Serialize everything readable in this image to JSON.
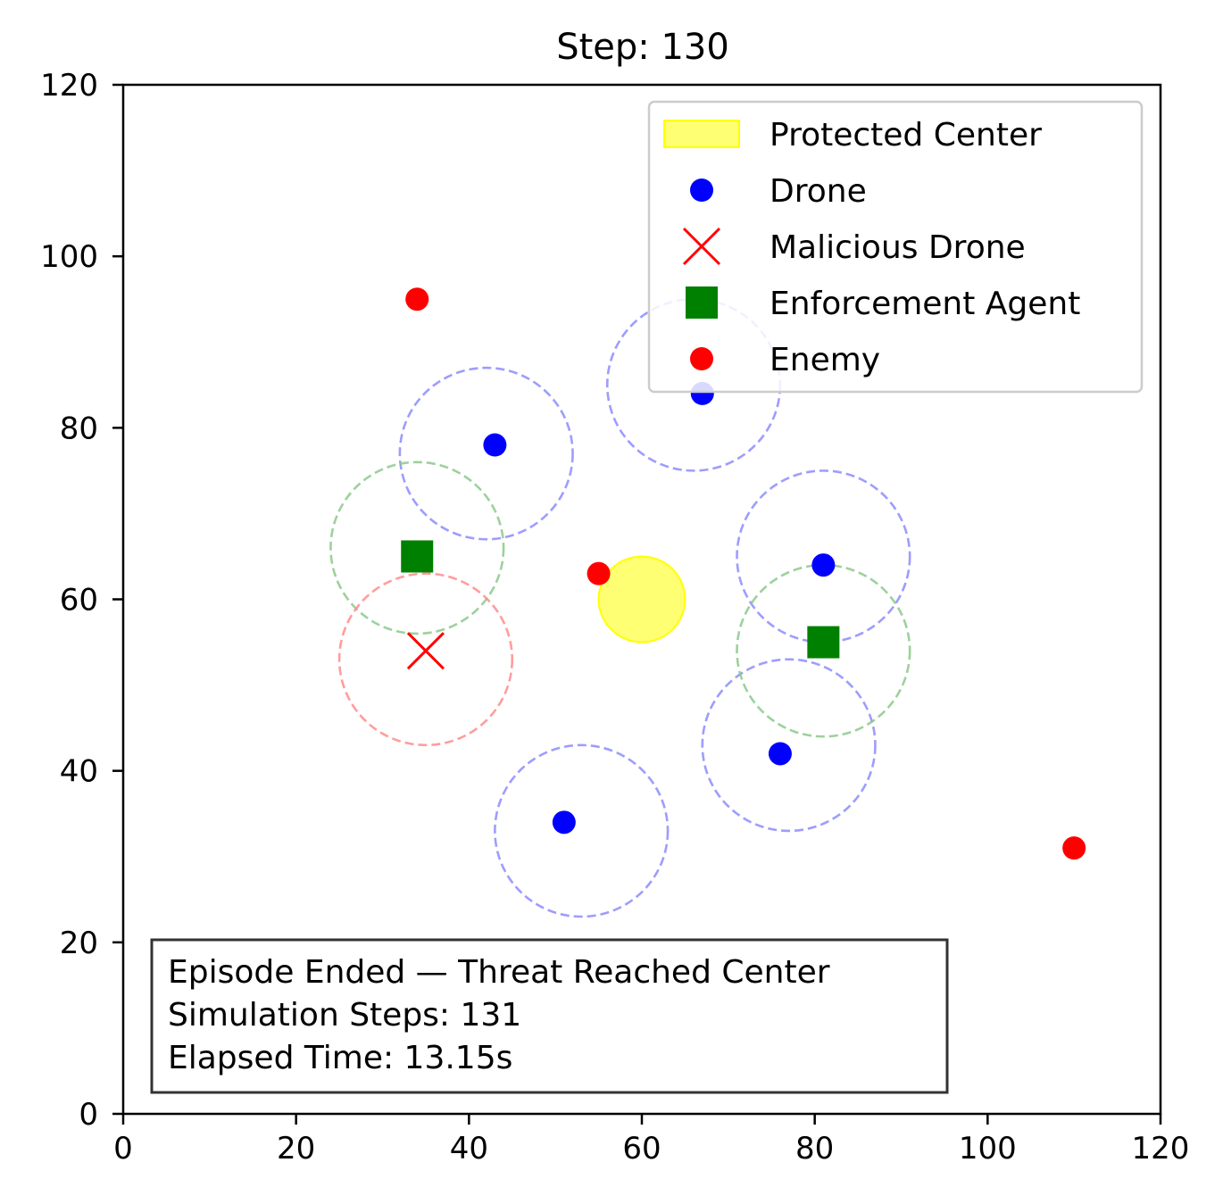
{
  "chart_data": {
    "type": "scatter",
    "title": "Step: 130",
    "xlabel": "",
    "ylabel": "",
    "xlim": [
      0,
      120
    ],
    "ylim": [
      0,
      120
    ],
    "xticks": [
      0,
      20,
      40,
      60,
      80,
      100,
      120
    ],
    "yticks": [
      0,
      20,
      40,
      60,
      80,
      100,
      120
    ],
    "grid": false,
    "legend_position": "top-right",
    "legend": [
      {
        "label": "Protected Center",
        "marker": "patch",
        "color": "#ffff00"
      },
      {
        "label": "Drone",
        "marker": "circle",
        "color": "#0000ff"
      },
      {
        "label": "Malicious Drone",
        "marker": "x",
        "color": "#ff0000"
      },
      {
        "label": "Enforcement Agent",
        "marker": "square",
        "color": "#008000"
      },
      {
        "label": "Enemy",
        "marker": "circle",
        "color": "#ff0000"
      }
    ],
    "protected_center": {
      "x": 60,
      "y": 60,
      "r": 5,
      "color": "#ffff00"
    },
    "drones": [
      {
        "x": 43,
        "y": 78
      },
      {
        "x": 67,
        "y": 84
      },
      {
        "x": 81,
        "y": 64
      },
      {
        "x": 76,
        "y": 42
      },
      {
        "x": 51,
        "y": 34
      }
    ],
    "malicious_drones": [
      {
        "x": 35,
        "y": 54
      }
    ],
    "enforcement_agents": [
      {
        "x": 34,
        "y": 65
      },
      {
        "x": 81,
        "y": 55
      }
    ],
    "enemies": [
      {
        "x": 34,
        "y": 95
      },
      {
        "x": 55,
        "y": 63
      },
      {
        "x": 110,
        "y": 31
      }
    ],
    "range_circles": [
      {
        "x": 42,
        "y": 77,
        "r": 10,
        "color": "#8c8cff"
      },
      {
        "x": 66,
        "y": 85,
        "r": 10,
        "color": "#8c8cff"
      },
      {
        "x": 81,
        "y": 65,
        "r": 10,
        "color": "#8c8cff"
      },
      {
        "x": 77,
        "y": 43,
        "r": 10,
        "color": "#8c8cff"
      },
      {
        "x": 53,
        "y": 33,
        "r": 10,
        "color": "#8c8cff"
      },
      {
        "x": 34,
        "y": 66,
        "r": 10,
        "color": "#8cc98c"
      },
      {
        "x": 81,
        "y": 54,
        "r": 10,
        "color": "#8cc98c"
      },
      {
        "x": 35,
        "y": 53,
        "r": 10,
        "color": "#ff8c8c"
      }
    ],
    "info_box": [
      "Episode Ended — Threat Reached Center",
      "Simulation Steps: 131",
      "Elapsed Time: 13.15s"
    ]
  }
}
